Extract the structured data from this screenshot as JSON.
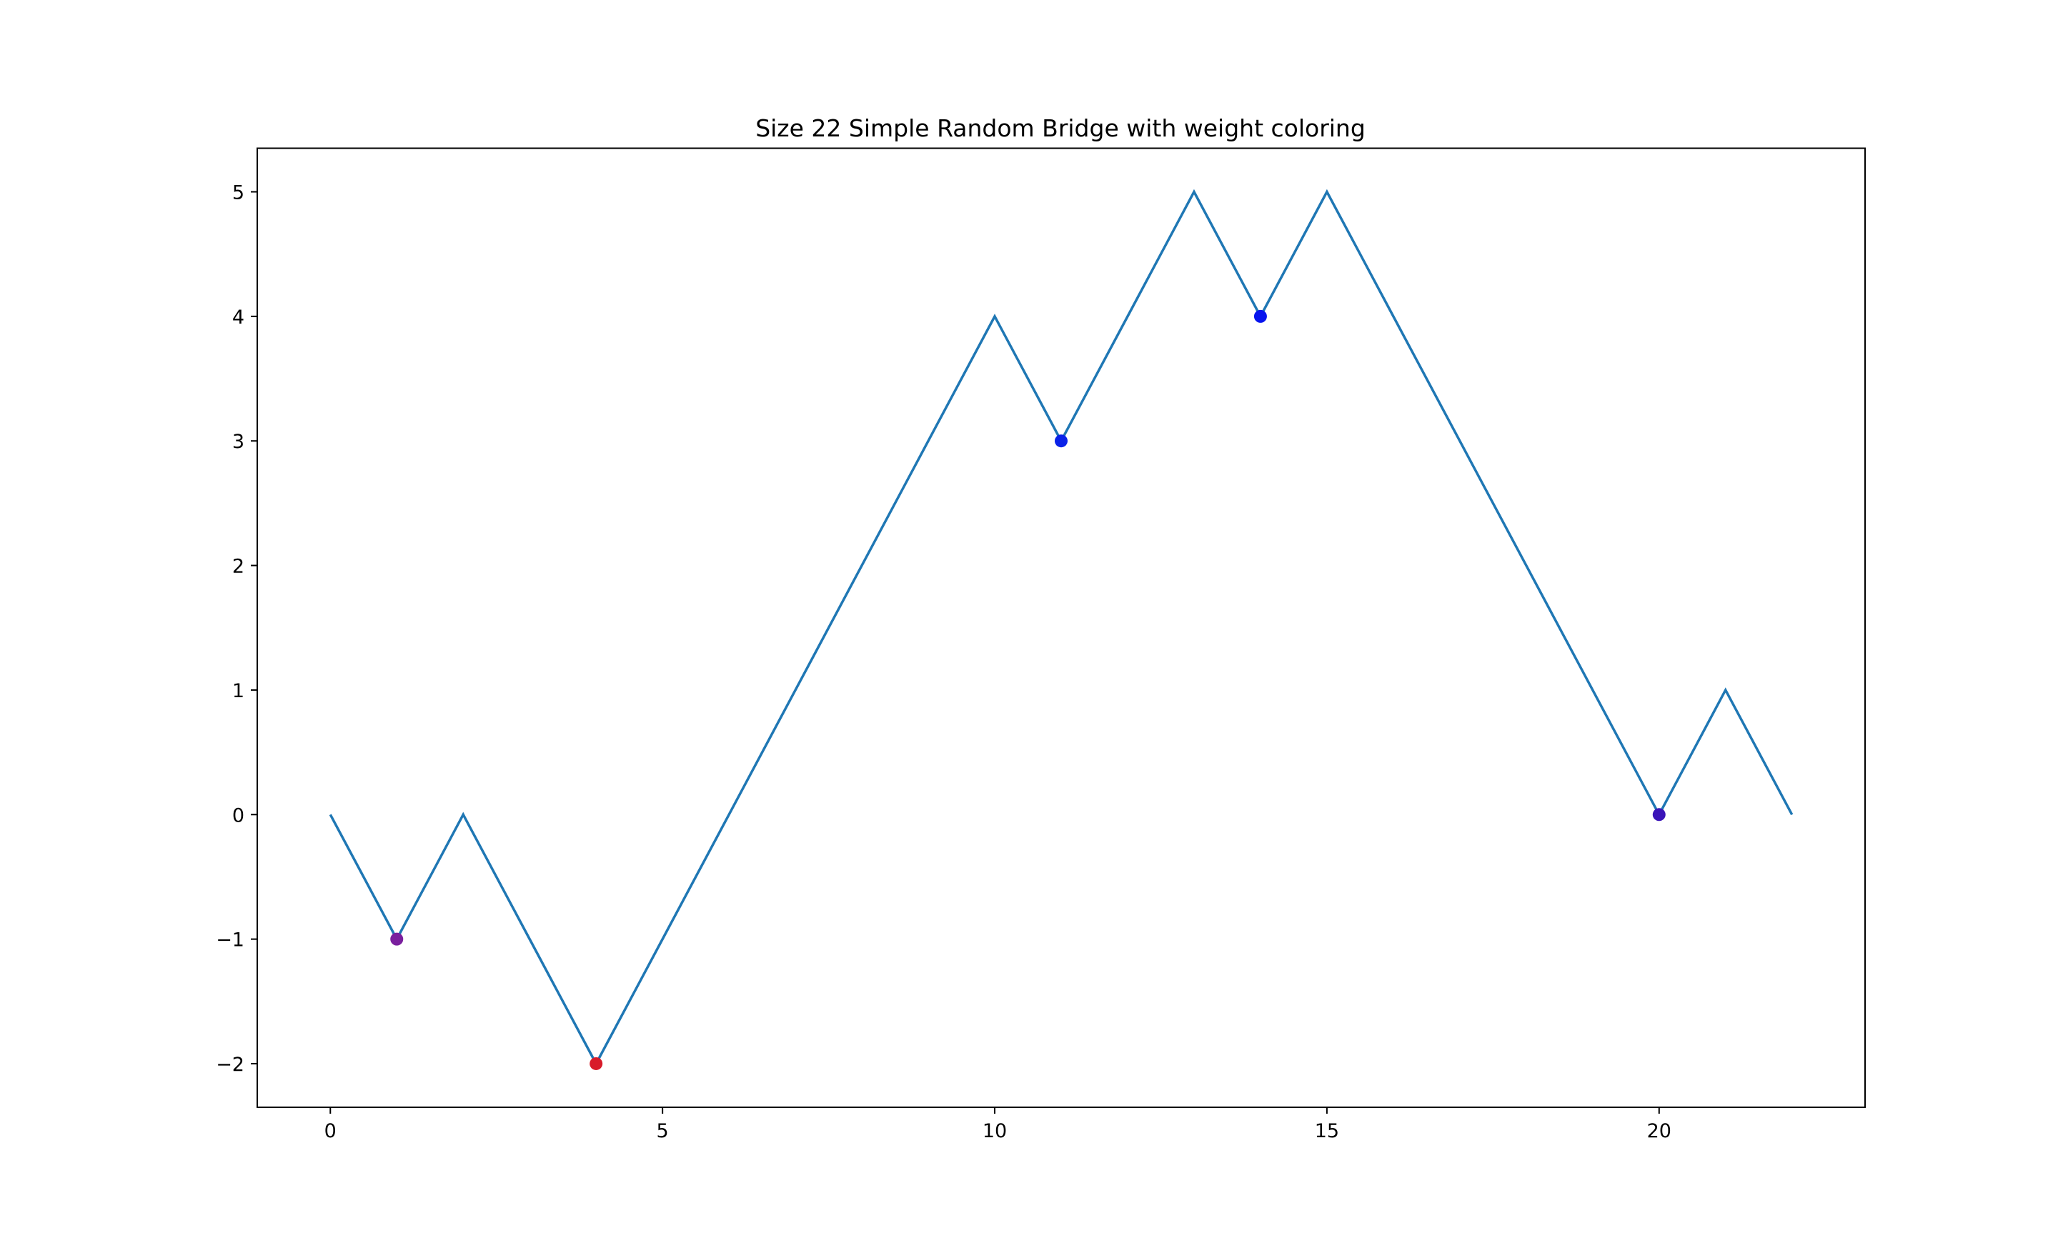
{
  "chart_data": {
    "type": "line",
    "title": "Size 22 Simple Random Bridge with weight coloring",
    "xlabel": "",
    "ylabel": "",
    "xlim": [
      -1.1,
      23.1
    ],
    "ylim": [
      -2.35,
      5.35
    ],
    "grid": false,
    "x_ticks": [
      0,
      5,
      10,
      15,
      20
    ],
    "x_tick_labels": [
      "0",
      "5",
      "10",
      "15",
      "20"
    ],
    "y_ticks": [
      -2,
      -1,
      0,
      1,
      2,
      3,
      4,
      5
    ],
    "y_tick_labels": [
      "−2",
      "−1",
      "0",
      "1",
      "2",
      "3",
      "4",
      "5"
    ],
    "series": [
      {
        "line_color": "#1f77b4",
        "x": [
          0,
          1,
          2,
          3,
          4,
          5,
          6,
          7,
          8,
          9,
          10,
          11,
          12,
          13,
          14,
          15,
          16,
          17,
          18,
          19,
          20,
          21,
          22
        ],
        "y": [
          0,
          -1,
          0,
          -1,
          -2,
          -1,
          0,
          1,
          2,
          3,
          4,
          3,
          4,
          5,
          4,
          5,
          4,
          3,
          2,
          1,
          0,
          1,
          0
        ]
      }
    ],
    "points": [
      {
        "x": 1,
        "y": -1,
        "color": "#7a1f9e"
      },
      {
        "x": 4,
        "y": -2,
        "color": "#d81b2a"
      },
      {
        "x": 11,
        "y": 3,
        "color": "#0a22e8"
      },
      {
        "x": 14,
        "y": 4,
        "color": "#0714ee"
      },
      {
        "x": 20,
        "y": 0,
        "color": "#3a14b8"
      }
    ]
  }
}
